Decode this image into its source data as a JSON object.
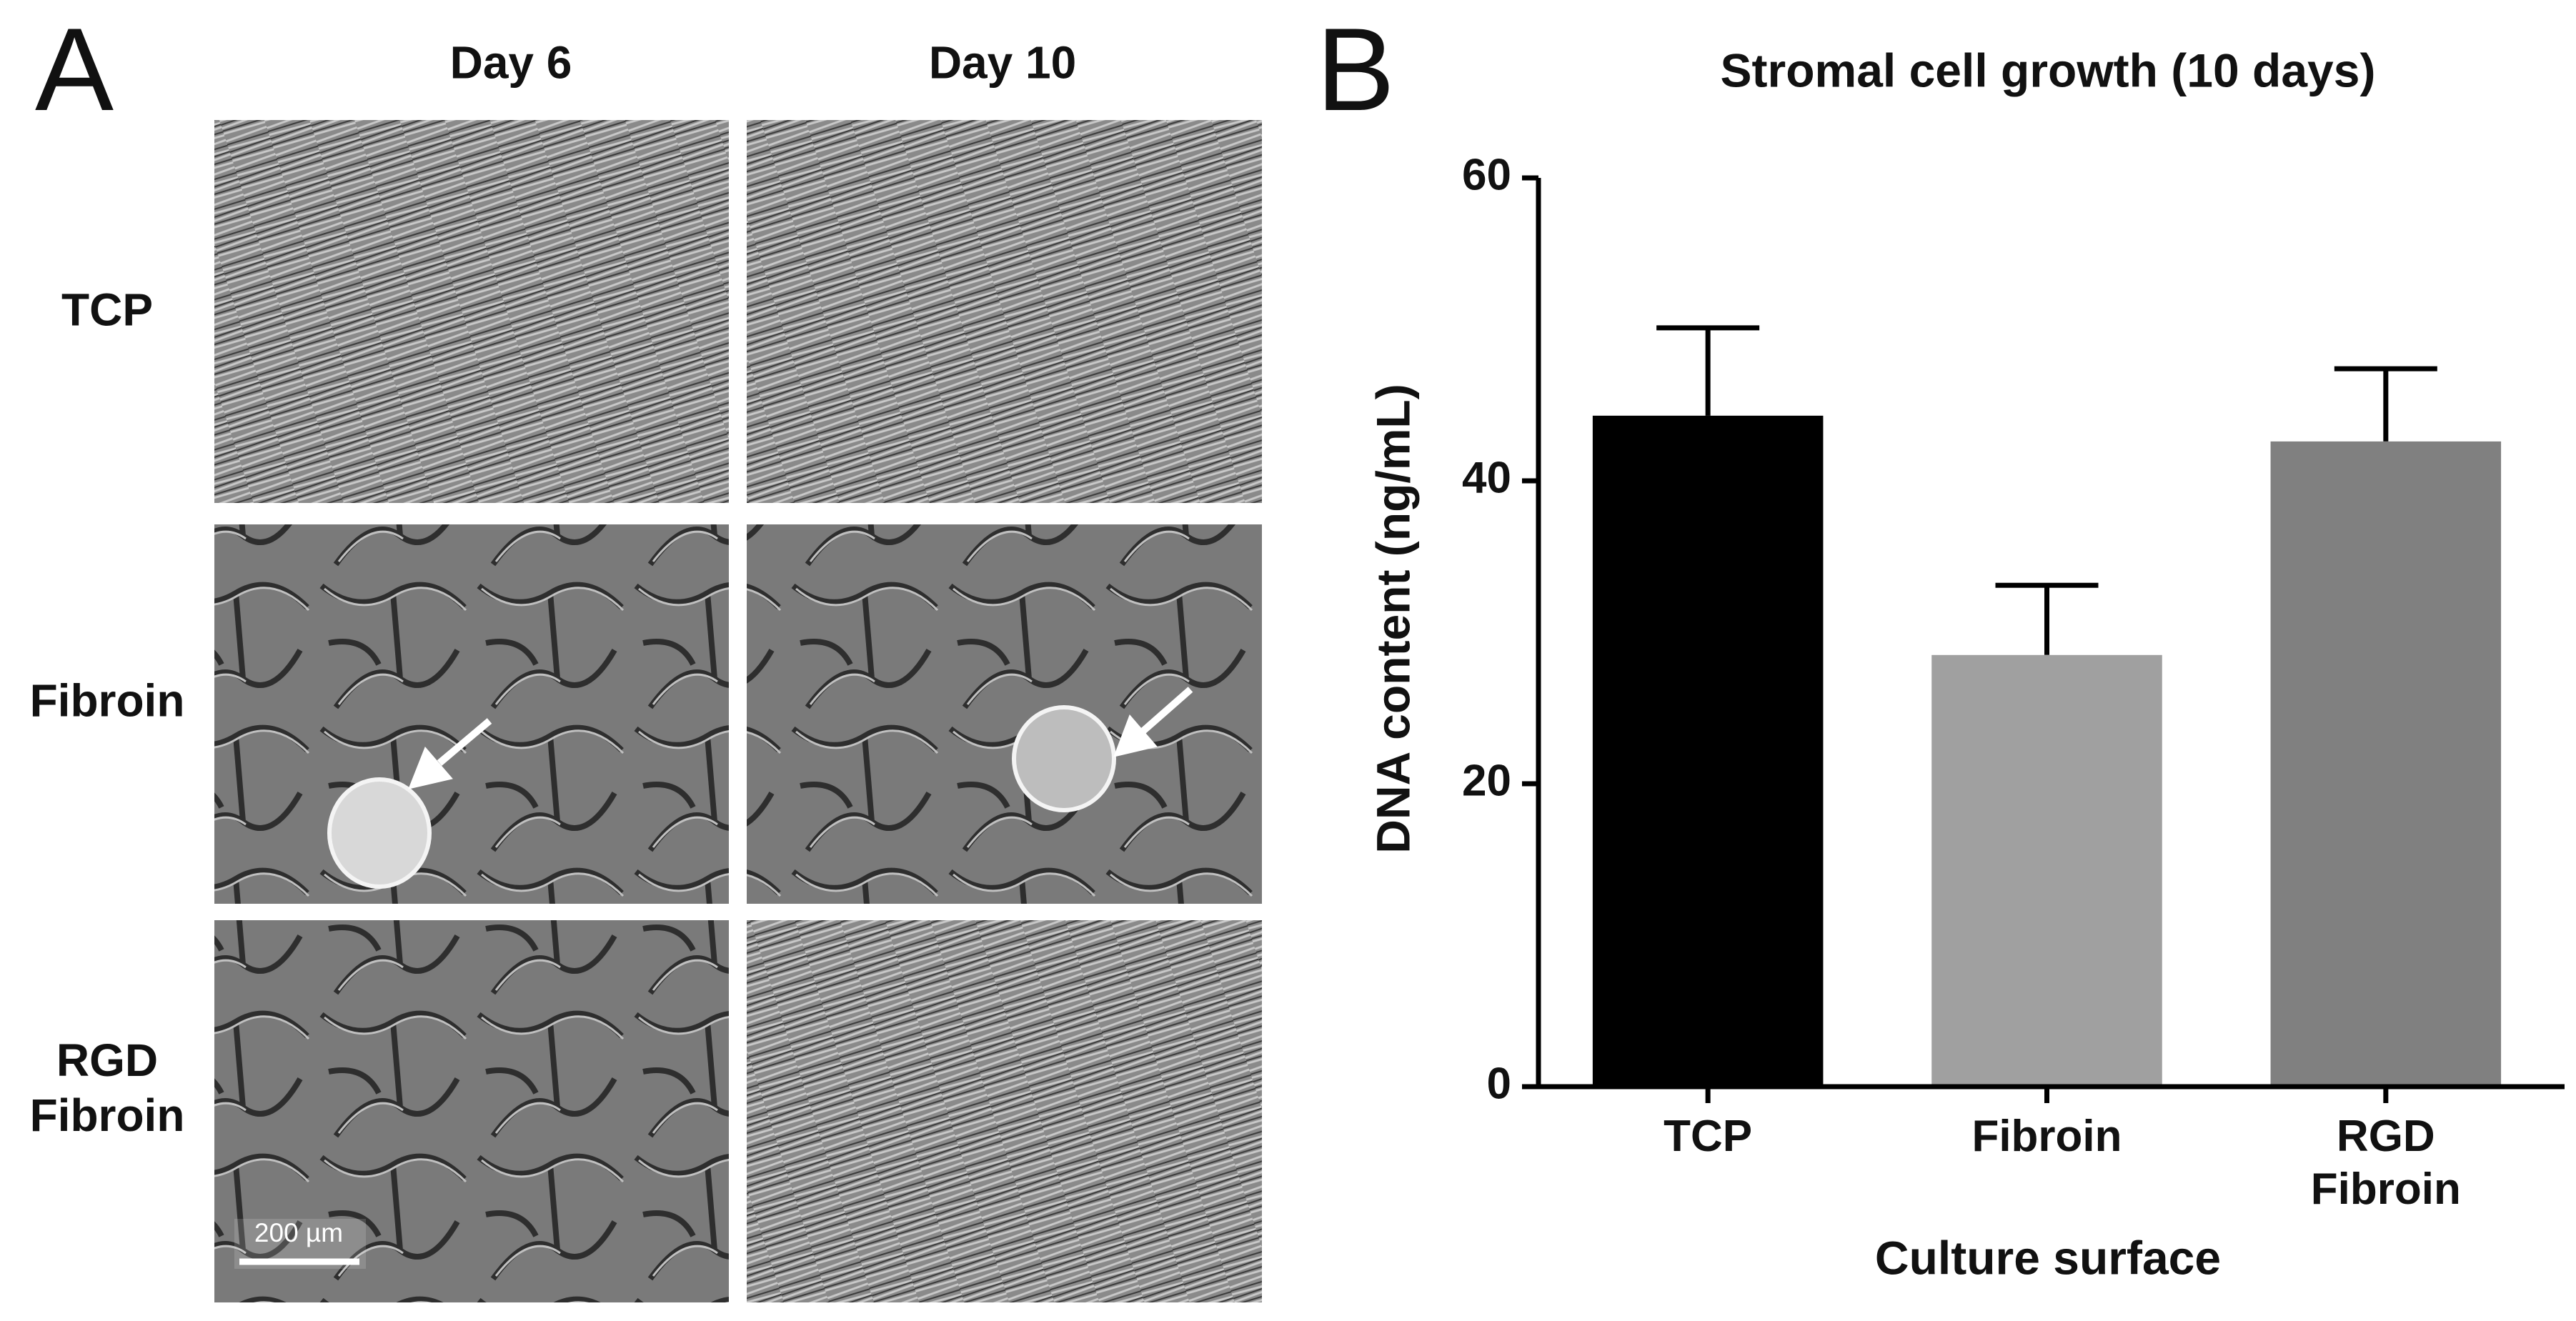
{
  "panel_labels": [
    "A",
    "B"
  ],
  "microscopy": {
    "columns": [
      "Day 6",
      "Day 10"
    ],
    "rows": [
      "TCP",
      "Fibroin",
      "RGD\nFibroin"
    ],
    "scale_bar": "200 µm"
  },
  "chart_data": {
    "type": "bar",
    "title": "Stromal cell growth (10 days)",
    "x_label": "Culture surface",
    "y_label": "DNA content (ng/mL)",
    "categories": [
      "TCP",
      "Fibroin",
      "RGD\nFibroin"
    ],
    "values": [
      44.3,
      28.5,
      42.6
    ],
    "errors": [
      5.8,
      4.6,
      4.8
    ],
    "colors": [
      "#000000",
      "#a0a0a0",
      "#808080"
    ],
    "ylim": [
      0,
      60
    ],
    "yticks": [
      0,
      20,
      40,
      60
    ]
  }
}
